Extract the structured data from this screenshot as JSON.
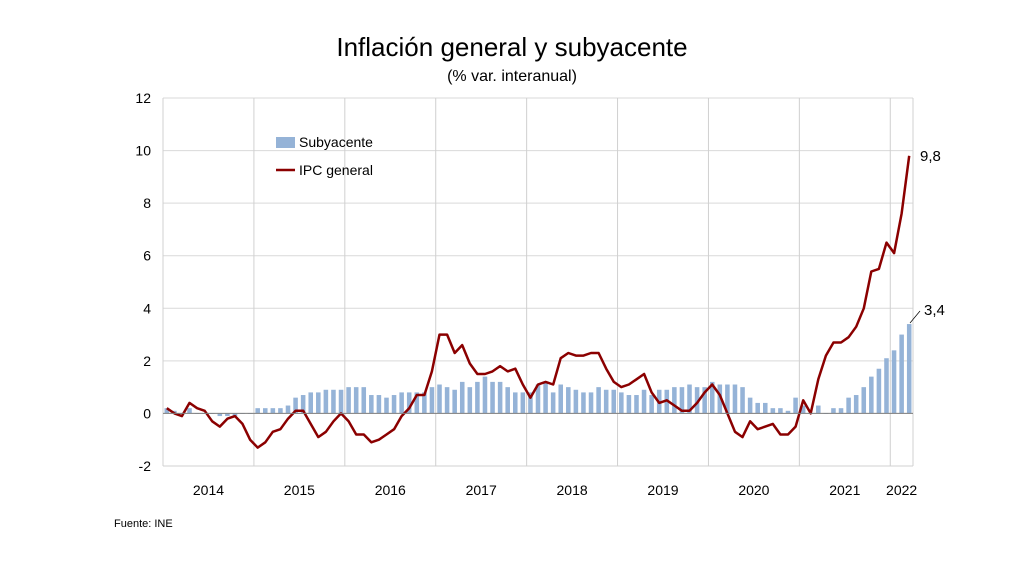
{
  "chart_data": {
    "type": "bar+line",
    "title": "Inflación general y subyacente",
    "subtitle": "(% var. interanual)",
    "source": "Fuente: INE",
    "ylim": [
      -2,
      12
    ],
    "yticks": [
      -2,
      0,
      2,
      4,
      6,
      8,
      10,
      12
    ],
    "grid": true,
    "legend_placement": "top-left",
    "x_start": "2014-01",
    "x_end": "2022-03",
    "year_labels": [
      "2014",
      "2015",
      "2016",
      "2017",
      "2018",
      "2019",
      "2020",
      "2021",
      "2022"
    ],
    "series": [
      {
        "name": "Subyacente",
        "kind": "bar",
        "color": "#95B3D7",
        "values": [
          0.2,
          0.1,
          0.0,
          0.2,
          0.0,
          0.0,
          0.0,
          -0.1,
          -0.1,
          -0.1,
          0.0,
          0.0,
          0.2,
          0.2,
          0.2,
          0.2,
          0.3,
          0.6,
          0.7,
          0.8,
          0.8,
          0.9,
          0.9,
          0.9,
          1.0,
          1.0,
          1.0,
          0.7,
          0.7,
          0.6,
          0.7,
          0.8,
          0.8,
          0.8,
          0.8,
          1.0,
          1.1,
          1.0,
          0.9,
          1.2,
          1.0,
          1.2,
          1.4,
          1.2,
          1.2,
          1.0,
          0.8,
          0.8,
          0.8,
          1.1,
          1.2,
          0.8,
          1.1,
          1.0,
          0.9,
          0.8,
          0.8,
          1.0,
          0.9,
          0.9,
          0.8,
          0.7,
          0.7,
          0.9,
          0.7,
          0.9,
          0.9,
          1.0,
          1.0,
          1.1,
          1.0,
          1.0,
          1.2,
          1.1,
          1.1,
          1.1,
          1.0,
          0.6,
          0.4,
          0.4,
          0.2,
          0.2,
          0.1,
          0.6,
          0.3,
          0.0,
          0.3,
          0.0,
          0.2,
          0.2,
          0.6,
          0.7,
          1.0,
          1.4,
          1.7,
          2.1,
          2.4,
          3.0,
          3.4
        ]
      },
      {
        "name": "IPC general",
        "kind": "line",
        "color": "#8B0000",
        "values": [
          0.2,
          0.0,
          -0.1,
          0.4,
          0.2,
          0.1,
          -0.3,
          -0.5,
          -0.2,
          -0.1,
          -0.4,
          -1.0,
          -1.3,
          -1.1,
          -0.7,
          -0.6,
          -0.2,
          0.1,
          0.1,
          -0.4,
          -0.9,
          -0.7,
          -0.3,
          0.0,
          -0.3,
          -0.8,
          -0.8,
          -1.1,
          -1.0,
          -0.8,
          -0.6,
          -0.1,
          0.2,
          0.7,
          0.7,
          1.6,
          3.0,
          3.0,
          2.3,
          2.6,
          1.9,
          1.5,
          1.5,
          1.6,
          1.8,
          1.6,
          1.7,
          1.1,
          0.6,
          1.1,
          1.2,
          1.1,
          2.1,
          2.3,
          2.2,
          2.2,
          2.3,
          2.3,
          1.7,
          1.2,
          1.0,
          1.1,
          1.3,
          1.5,
          0.8,
          0.4,
          0.5,
          0.3,
          0.1,
          0.1,
          0.4,
          0.8,
          1.1,
          0.7,
          0.0,
          -0.7,
          -0.9,
          -0.3,
          -0.6,
          -0.5,
          -0.4,
          -0.8,
          -0.8,
          -0.5,
          0.5,
          0.0,
          1.3,
          2.2,
          2.7,
          2.7,
          2.9,
          3.3,
          4.0,
          5.4,
          5.5,
          6.5,
          6.1,
          7.6,
          9.8
        ]
      }
    ],
    "annotations": [
      "9,8",
      "3,4"
    ]
  }
}
